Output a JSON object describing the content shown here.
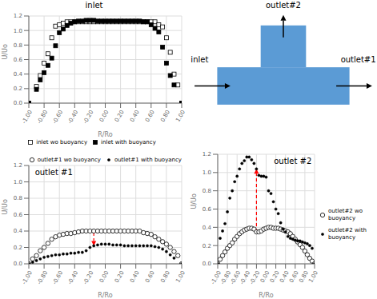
{
  "chart_data": [
    {
      "type": "scatter",
      "title": "inlet",
      "x_label": "R/Ro",
      "y_label": "U/Uo",
      "xlim": [
        -1.0,
        1.0
      ],
      "ylim": [
        0,
        1.2
      ],
      "xticks": [
        {
          "value": -1.0,
          "label": "-1.00"
        },
        {
          "value": -0.8,
          "label": "-0.80"
        },
        {
          "value": -0.6,
          "label": "-0.60"
        },
        {
          "value": -0.4,
          "label": "-0.40"
        },
        {
          "value": -0.2,
          "label": "-0.20"
        },
        {
          "value": 0.0,
          "label": "0.00"
        },
        {
          "value": 0.2,
          "label": "0.20"
        },
        {
          "value": 0.4,
          "label": "0.40"
        },
        {
          "value": 0.6,
          "label": "0.60"
        },
        {
          "value": 0.8,
          "label": "0.80"
        },
        {
          "value": 1.0,
          "label": "1.00"
        }
      ],
      "yticks": [
        {
          "value": 0,
          "label": "0.0"
        },
        0.2,
        0.4,
        0.6,
        0.8,
        {
          "value": 1,
          "label": "1.0"
        },
        1.2
      ],
      "grid": true,
      "legend": "lower center",
      "series": [
        {
          "name": "inlet wo buoyancy",
          "color": "#000000",
          "marker": "open-square",
          "x": [
            -1.0,
            -0.9,
            -0.85,
            -0.8,
            -0.75,
            -0.7,
            -0.65,
            -0.6,
            -0.55,
            -0.5,
            -0.45,
            -0.4,
            -0.35,
            -0.3,
            -0.25,
            -0.2,
            -0.15,
            -0.1,
            -0.05,
            0.0,
            0.05,
            0.1,
            0.15,
            0.2,
            0.25,
            0.3,
            0.35,
            0.4,
            0.45,
            0.5,
            0.55,
            0.6,
            0.65,
            0.7,
            0.75,
            0.8,
            0.85,
            0.9,
            0.95,
            1.0
          ],
          "values": [
            0.0,
            0.23,
            0.38,
            0.55,
            0.68,
            0.9,
            1.06,
            1.08,
            1.1,
            1.12,
            1.12,
            1.12,
            1.12,
            1.12,
            1.12,
            1.12,
            1.12,
            1.12,
            1.12,
            1.12,
            1.12,
            1.12,
            1.12,
            1.12,
            1.12,
            1.12,
            1.12,
            1.12,
            1.12,
            1.12,
            1.12,
            1.12,
            1.12,
            1.08,
            1.05,
            0.9,
            0.7,
            0.4,
            0.25,
            0.0
          ]
        },
        {
          "name": "inlet with buoyancy",
          "color": "#000000",
          "marker": "square",
          "x": [
            -1.0,
            -0.9,
            -0.85,
            -0.8,
            -0.75,
            -0.7,
            -0.65,
            -0.6,
            -0.55,
            -0.5,
            -0.45,
            -0.4,
            -0.35,
            -0.3,
            -0.25,
            -0.2,
            -0.15,
            -0.1,
            -0.05,
            0.0,
            0.05,
            0.1,
            0.15,
            0.2,
            0.25,
            0.3,
            0.35,
            0.4,
            0.45,
            0.5,
            0.55,
            0.6,
            0.65,
            0.7,
            0.75,
            0.8,
            0.85,
            0.9,
            1.0
          ],
          "values": [
            0.0,
            0.19,
            0.32,
            0.42,
            0.52,
            0.62,
            0.79,
            0.97,
            1.02,
            1.07,
            1.1,
            1.12,
            1.13,
            1.13,
            1.14,
            1.14,
            1.14,
            1.13,
            1.13,
            1.13,
            1.13,
            1.13,
            1.13,
            1.13,
            1.13,
            1.13,
            1.13,
            1.13,
            1.13,
            1.12,
            1.12,
            1.08,
            1.03,
            0.98,
            0.77,
            0.55,
            0.38,
            0.25,
            0.0
          ]
        }
      ]
    },
    {
      "type": "diagram",
      "color": "#5b9bd5",
      "annotations": [
        "inlet",
        "outlet#1",
        "outlet#2"
      ]
    },
    {
      "type": "scatter",
      "x_label": "R/Ro",
      "y_label": "U/Uo",
      "xlim": [
        -1.0,
        1.0
      ],
      "ylim": [
        0,
        1.2
      ],
      "xticks": [
        {
          "value": -1.0,
          "label": "-1.00"
        },
        {
          "value": -0.8,
          "label": "-0.80"
        },
        {
          "value": -0.6,
          "label": "-0.60"
        },
        {
          "value": -0.4,
          "label": "-0.40"
        },
        {
          "value": -0.2,
          "label": "-0.20"
        },
        {
          "value": 0.0,
          "label": "0.00"
        },
        {
          "value": 0.2,
          "label": "0.20"
        },
        {
          "value": 0.4,
          "label": "0.40"
        },
        {
          "value": 0.6,
          "label": "0.60"
        },
        {
          "value": 0.8,
          "label": "0.80"
        },
        {
          "value": 1.0,
          "label": "1.00"
        }
      ],
      "yticks": [
        {
          "value": 0,
          "label": "0.0"
        },
        0.2,
        0.4,
        0.6,
        0.8,
        {
          "value": 1,
          "label": "1.0"
        },
        1.2
      ],
      "grid": true,
      "legend": "upper right",
      "annotations": [
        "outlet #1"
      ],
      "arrows": [
        {
          "from": [
            -0.15,
            0.38
          ],
          "to": [
            -0.15,
            0.22
          ],
          "color": "#ff0000",
          "line_style": "dashed"
        }
      ],
      "series": [
        {
          "name": "outlet#1 wo buoyancy",
          "color": "#000000",
          "marker": "open-circle",
          "x": [
            -1.0,
            -0.95,
            -0.9,
            -0.85,
            -0.8,
            -0.75,
            -0.7,
            -0.65,
            -0.6,
            -0.55,
            -0.5,
            -0.45,
            -0.4,
            -0.35,
            -0.3,
            -0.25,
            -0.2,
            -0.15,
            -0.1,
            -0.05,
            0.0,
            0.05,
            0.1,
            0.15,
            0.2,
            0.25,
            0.3,
            0.35,
            0.4,
            0.45,
            0.5,
            0.55,
            0.6,
            0.65,
            0.7,
            0.75,
            0.8,
            0.85,
            0.9,
            0.95,
            1.0
          ],
          "values": [
            0.0,
            0.06,
            0.1,
            0.16,
            0.2,
            0.25,
            0.3,
            0.33,
            0.35,
            0.36,
            0.37,
            0.37,
            0.38,
            0.39,
            0.4,
            0.4,
            0.4,
            0.4,
            0.4,
            0.4,
            0.4,
            0.4,
            0.4,
            0.4,
            0.4,
            0.4,
            0.4,
            0.4,
            0.4,
            0.4,
            0.38,
            0.37,
            0.36,
            0.33,
            0.3,
            0.27,
            0.24,
            0.2,
            0.15,
            0.1,
            0.0
          ]
        },
        {
          "name": "outlet#1 with buoyancy",
          "color": "#000000",
          "marker": "dot",
          "x": [
            -1.0,
            -0.95,
            -0.9,
            -0.85,
            -0.8,
            -0.75,
            -0.7,
            -0.65,
            -0.6,
            -0.55,
            -0.5,
            -0.45,
            -0.4,
            -0.35,
            -0.3,
            -0.25,
            -0.2,
            -0.15,
            -0.1,
            -0.05,
            0.0,
            0.05,
            0.1,
            0.15,
            0.2,
            0.25,
            0.3,
            0.35,
            0.4,
            0.45,
            0.5,
            0.55,
            0.6,
            0.65,
            0.7,
            0.75,
            0.8,
            0.85,
            0.9,
            1.0
          ],
          "values": [
            0.0,
            0.02,
            0.04,
            0.06,
            0.08,
            0.09,
            0.1,
            0.11,
            0.11,
            0.12,
            0.12,
            0.13,
            0.13,
            0.14,
            0.14,
            0.16,
            0.2,
            0.22,
            0.23,
            0.24,
            0.24,
            0.24,
            0.23,
            0.23,
            0.23,
            0.22,
            0.22,
            0.22,
            0.22,
            0.22,
            0.22,
            0.22,
            0.22,
            0.21,
            0.2,
            0.18,
            0.15,
            0.11,
            0.07,
            0.0
          ]
        }
      ]
    },
    {
      "type": "scatter",
      "x_label": "R/Ro",
      "y_label": "U/Uo",
      "xlim": [
        -1.0,
        1.0
      ],
      "ylim": [
        0,
        1.2
      ],
      "xticks": [
        {
          "value": -1.0,
          "label": "-1.00"
        },
        {
          "value": -0.8,
          "label": "-0.80"
        },
        {
          "value": -0.6,
          "label": "-0.60"
        },
        {
          "value": -0.4,
          "label": "-0.40"
        },
        {
          "value": -0.2,
          "label": "-0.20"
        },
        {
          "value": 0.0,
          "label": "0.00"
        },
        {
          "value": 0.2,
          "label": "0.20"
        },
        {
          "value": 0.4,
          "label": "0.40"
        },
        {
          "value": 0.6,
          "label": "0.60"
        },
        {
          "value": 0.8,
          "label": "0.80"
        },
        {
          "value": 1.0,
          "label": "1.00"
        }
      ],
      "yticks": [
        {
          "value": 0,
          "label": "0.0"
        },
        0.2,
        0.4,
        0.6,
        0.8,
        {
          "value": 1,
          "label": "1.0"
        },
        1.2
      ],
      "grid": true,
      "legend": "center right",
      "annotations": [
        "outlet #2"
      ],
      "arrows": [
        {
          "from": [
            -0.2,
            0.35
          ],
          "to": [
            -0.2,
            1.04
          ],
          "color": "#ff0000",
          "line_style": "dashed"
        }
      ],
      "series": [
        {
          "name": "outlet#2 wo buoyancy",
          "color": "#000000",
          "marker": "open-circle",
          "x": [
            -1.0,
            -0.95,
            -0.9,
            -0.85,
            -0.8,
            -0.75,
            -0.7,
            -0.65,
            -0.6,
            -0.55,
            -0.5,
            -0.45,
            -0.4,
            -0.35,
            -0.3,
            -0.25,
            -0.2,
            -0.15,
            -0.1,
            -0.05,
            0.0,
            0.05,
            0.1,
            0.15,
            0.2,
            0.25,
            0.3,
            0.35,
            0.4,
            0.45,
            0.5,
            0.55,
            0.6,
            0.65,
            0.7,
            0.75,
            0.8,
            0.85,
            0.9,
            0.95,
            1.0
          ],
          "values": [
            0.0,
            0.05,
            0.09,
            0.13,
            0.17,
            0.2,
            0.23,
            0.27,
            0.3,
            0.33,
            0.35,
            0.37,
            0.38,
            0.39,
            0.39,
            0.38,
            0.35,
            0.35,
            0.36,
            0.38,
            0.39,
            0.4,
            0.4,
            0.39,
            0.39,
            0.39,
            0.38,
            0.37,
            0.36,
            0.35,
            0.33,
            0.3,
            0.27,
            0.24,
            0.21,
            0.18,
            0.14,
            0.1,
            0.06,
            0.03,
            0.0
          ]
        },
        {
          "name": "outlet#2 with buoyancy",
          "color": "#000000",
          "marker": "dot",
          "x": [
            -1.0,
            -0.95,
            -0.9,
            -0.85,
            -0.8,
            -0.75,
            -0.7,
            -0.65,
            -0.6,
            -0.55,
            -0.5,
            -0.45,
            -0.4,
            -0.35,
            -0.3,
            -0.25,
            -0.2,
            -0.15,
            -0.1,
            -0.05,
            0.0,
            0.05,
            0.1,
            0.15,
            0.2,
            0.25,
            0.3,
            0.35,
            0.4,
            0.45,
            0.5,
            0.55,
            0.6,
            0.65,
            0.7,
            0.75,
            0.8,
            0.85,
            0.9,
            0.95,
            1.0
          ],
          "values": [
            0.0,
            0.28,
            0.36,
            0.44,
            0.57,
            0.72,
            0.8,
            0.9,
            0.96,
            1.04,
            1.1,
            1.13,
            1.17,
            1.17,
            1.14,
            1.1,
            1.04,
            0.97,
            0.96,
            0.96,
            0.95,
            0.8,
            0.77,
            0.68,
            0.6,
            0.55,
            0.45,
            0.38,
            0.35,
            0.3,
            0.28,
            0.27,
            0.26,
            0.25,
            0.25,
            0.24,
            0.23,
            0.22,
            0.2,
            0.17,
            0.0
          ]
        }
      ]
    }
  ]
}
